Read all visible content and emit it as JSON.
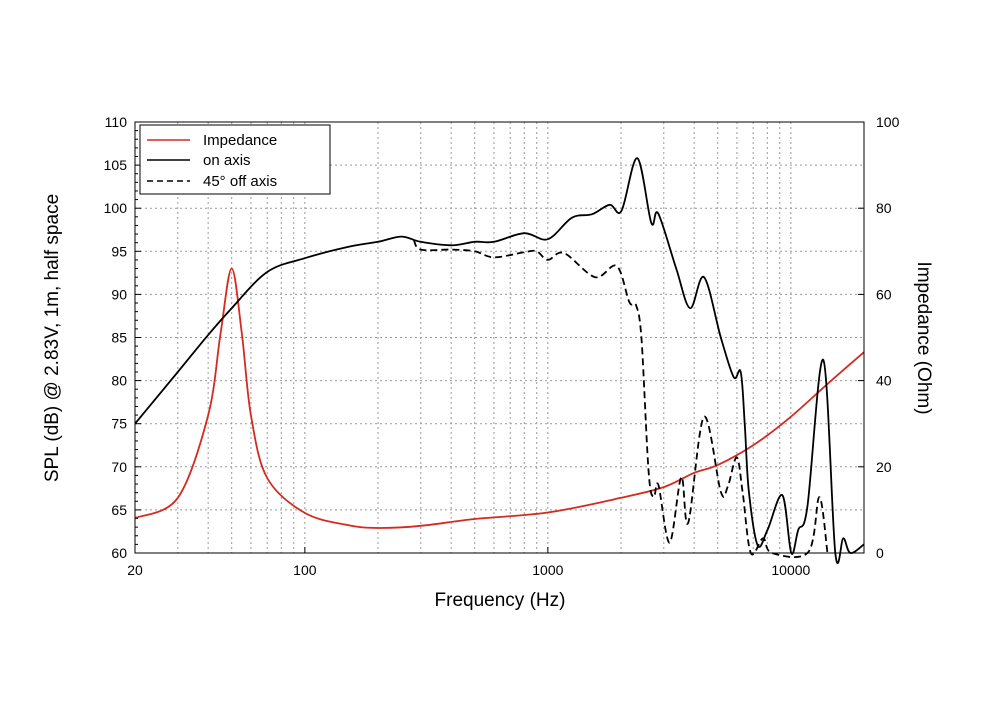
{
  "chart_data": {
    "type": "line",
    "xscale": "log",
    "xlabel": "Frequency (Hz)",
    "ylabel": "SPL (dB) @ 2.83V, 1m, half space",
    "y2label": "Impedance (Ohm)",
    "xlim": [
      20,
      20000
    ],
    "ylim": [
      60,
      110
    ],
    "y2lim": [
      0,
      100
    ],
    "xticks": [
      20,
      100,
      1000,
      10000
    ],
    "xtick_labels": [
      "20",
      "100",
      "1000",
      "10000"
    ],
    "yticks": [
      60,
      65,
      70,
      75,
      80,
      85,
      90,
      95,
      100,
      105,
      110
    ],
    "ytick_labels": [
      "60",
      "65",
      "70",
      "75",
      "80",
      "85",
      "90",
      "95",
      "100",
      "105",
      "110"
    ],
    "y2ticks": [
      0,
      20,
      40,
      60,
      80,
      100
    ],
    "y2tick_labels": [
      "0",
      "20",
      "40",
      "60",
      "80",
      "100"
    ],
    "grid": true,
    "legend_position": "top-left",
    "series": [
      {
        "name": "Impedance",
        "axis": "right",
        "color": "#d42a20",
        "style": "solid",
        "x": [
          20,
          30,
          40,
          45,
          50,
          55,
          60,
          70,
          100,
          150,
          200,
          300,
          500,
          1000,
          2000,
          3000,
          4000,
          5000,
          7000,
          10000,
          14000,
          20000
        ],
        "y": [
          8.1,
          12.8,
          32,
          51,
          66,
          51,
          32,
          17.4,
          9.3,
          6.5,
          5.8,
          6.3,
          7.9,
          9.4,
          12.8,
          15.3,
          18.6,
          20.4,
          25,
          31.6,
          39,
          46.6
        ]
      },
      {
        "name": "on axis",
        "axis": "left",
        "color": "#000000",
        "style": "solid",
        "x": [
          20,
          30,
          40,
          50,
          70,
          100,
          150,
          200,
          250,
          300,
          400,
          500,
          600,
          800,
          1000,
          1257,
          1523,
          1797,
          2010,
          2335,
          2664,
          2846,
          3375,
          3850,
          4390,
          5150,
          5820,
          6220,
          6460,
          6710,
          7300,
          8020,
          9230,
          10040,
          10730,
          11690,
          13600,
          15240,
          16440,
          17580,
          20000
        ],
        "y": [
          75,
          81,
          85.3,
          88.4,
          92.6,
          94.2,
          95.5,
          96.1,
          96.7,
          96.1,
          95.7,
          96.1,
          96.1,
          97.1,
          96.4,
          98.9,
          99.3,
          100.4,
          99.7,
          105.8,
          98.3,
          99.4,
          93,
          88.4,
          92,
          85,
          80.4,
          81,
          75,
          67.3,
          60.9,
          62.7,
          66.7,
          60,
          62.7,
          65.3,
          82.4,
          60,
          61.7,
          60,
          61
        ]
      },
      {
        "name": "45° off axis",
        "axis": "left",
        "color": "#000000",
        "style": "dashed",
        "x": [
          281,
          300,
          400,
          500,
          600,
          800,
          900,
          1000,
          1165,
          1565,
          1920,
          2165,
          2310,
          2430,
          2600,
          2730,
          2850,
          3170,
          3540,
          3780,
          4390,
          5150,
          5500,
          5990,
          6340,
          6840,
          7690,
          8360,
          11800,
          13100,
          14150
        ],
        "y": [
          96.3,
          95.2,
          95.2,
          95,
          94.3,
          94.9,
          95,
          94,
          94.8,
          92,
          93.3,
          89.1,
          88.7,
          84.7,
          69.3,
          66.5,
          67.9,
          61.2,
          68.8,
          63.5,
          75.8,
          67.1,
          67.7,
          71.1,
          66.9,
          60,
          61.7,
          60,
          60.1,
          66.5,
          60
        ]
      }
    ]
  }
}
